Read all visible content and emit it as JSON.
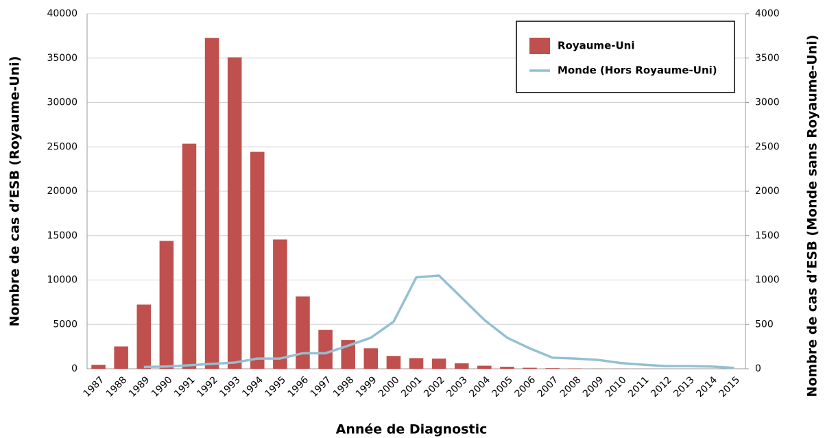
{
  "chart_data": {
    "type": "bar-line",
    "xlabel": "Année de Diagnostic",
    "ylabel": "Nombre de cas d’ESB (Royaume-Uni)",
    "y2label": "Nombre de cas d’ESB (Monde sans Royaume-Uni)",
    "categories": [
      "1987",
      "1988",
      "1989",
      "1990",
      "1991",
      "1992",
      "1993",
      "1994",
      "1995",
      "1996",
      "1997",
      "1998",
      "1999",
      "2000",
      "2001",
      "2002",
      "2003",
      "2004",
      "2005",
      "2006",
      "2007",
      "2008",
      "2009",
      "2010",
      "2011",
      "2012",
      "2013",
      "2014",
      "2015"
    ],
    "series": [
      {
        "name": "Royaume-Uni",
        "color": "#c0504d",
        "kind": "bar",
        "values": [
          446,
          2514,
          7228,
          14407,
          25359,
          37280,
          35090,
          24438,
          14562,
          8149,
          4393,
          3235,
          2301,
          1443,
          1202,
          1144,
          611,
          343,
          225,
          114,
          67,
          37,
          12,
          11,
          7,
          3,
          3,
          1,
          2
        ]
      },
      {
        "name": "Monde (Hors Royaume-Uni)",
        "color": "#93c0d2",
        "kind": "line",
        "axis": "y2",
        "values": [
          null,
          null,
          20,
          25,
          40,
          55,
          70,
          115,
          115,
          175,
          175,
          260,
          350,
          530,
          1030,
          1050,
          800,
          550,
          350,
          230,
          125,
          115,
          100,
          65,
          45,
          30,
          30,
          25,
          10
        ]
      }
    ],
    "ylim": [
      0,
      40000
    ],
    "yticks": [
      0,
      5000,
      10000,
      15000,
      20000,
      25000,
      30000,
      35000,
      40000
    ],
    "y2lim": [
      0,
      4000
    ],
    "y2ticks": [
      0,
      500,
      1000,
      1500,
      2000,
      2500,
      3000,
      3500,
      4000
    ],
    "grid": true,
    "legend": "top-right"
  }
}
